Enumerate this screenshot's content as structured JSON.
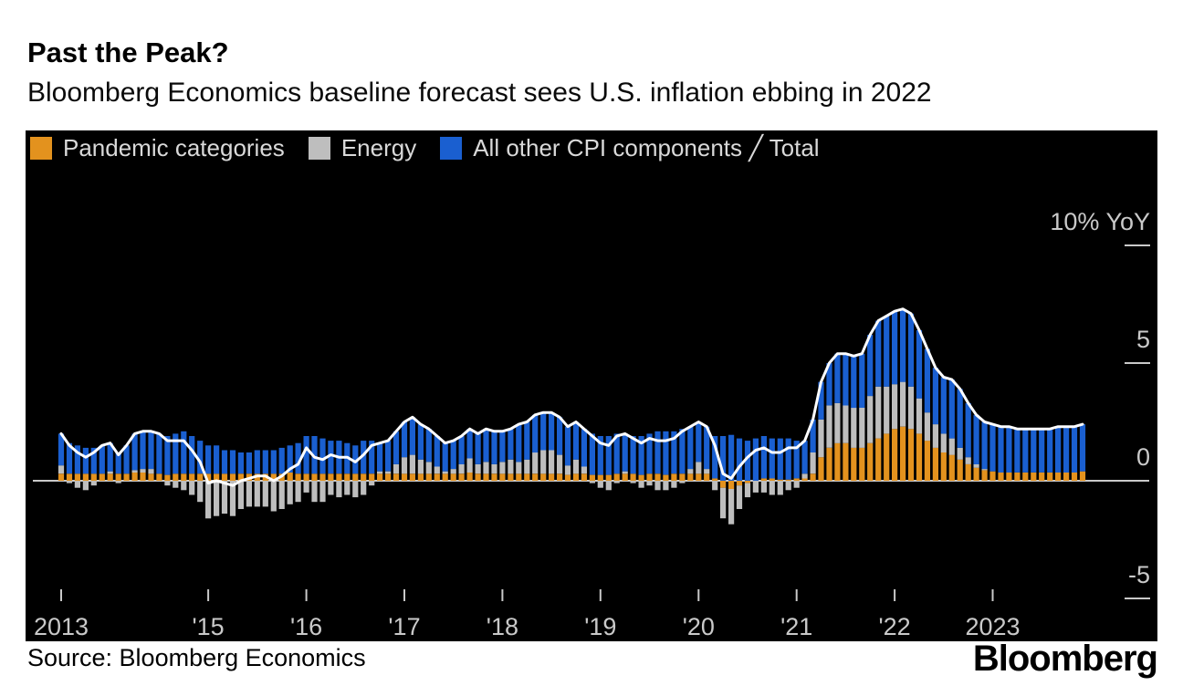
{
  "header": {
    "title": "Past the Peak?",
    "subtitle": "Bloomberg Economics baseline forecast sees U.S. inflation ebbing in 2022"
  },
  "legend": {
    "items": [
      {
        "label": "Pandemic categories",
        "color": "#E3921E"
      },
      {
        "label": "Energy",
        "color": "#BEBEBE"
      },
      {
        "label": "All other CPI components ╱ Total",
        "color": "#1A5FD0"
      }
    ]
  },
  "footer": {
    "source": "Source: Bloomberg Economics",
    "logo": "Bloomberg"
  },
  "chart_data": {
    "type": "bar",
    "subtype": "stacked-monthly-bars-with-total-line",
    "title": "Past the Peak?",
    "subtitle": "Bloomberg Economics baseline forecast sees U.S. inflation ebbing in 2022",
    "unit": "% YoY contribution to U.S. CPI",
    "x": {
      "frequency": "monthly",
      "start": "2013-07",
      "end": "2023-12",
      "ticks": [
        {
          "month_index": 0,
          "label": "2013"
        },
        {
          "month_index": 18,
          "label": "'15"
        },
        {
          "month_index": 30,
          "label": "'16"
        },
        {
          "month_index": 42,
          "label": "'17"
        },
        {
          "month_index": 54,
          "label": "'18"
        },
        {
          "month_index": 66,
          "label": "'19"
        },
        {
          "month_index": 78,
          "label": "'20"
        },
        {
          "month_index": 90,
          "label": "'21"
        },
        {
          "month_index": 102,
          "label": "'22"
        },
        {
          "month_index": 114,
          "label": "2023"
        }
      ]
    },
    "y": {
      "ticks": [
        {
          "value": 10,
          "label": "10% YoY",
          "dash": true
        },
        {
          "value": 5,
          "label": "5",
          "dash": true
        },
        {
          "value": 0,
          "label": "0",
          "dash": false
        },
        {
          "value": -5,
          "label": "-5",
          "dash": true
        }
      ],
      "range": [
        -5.3,
        12.9
      ],
      "grid": "zero-line-only"
    },
    "colors": {
      "background": "#000000",
      "axis_text": "#c9c9c9",
      "zero_line": "#c9c9c9",
      "total_line": "#ffffff"
    },
    "series": [
      {
        "name": "Pandemic categories",
        "type": "bar",
        "color": "#E3921E",
        "values": [
          0.3,
          0.3,
          0.3,
          0.3,
          0.3,
          0.3,
          0.3,
          0.3,
          0.3,
          0.35,
          0.35,
          0.3,
          0.3,
          0.25,
          0.3,
          0.3,
          0.3,
          0.3,
          0.3,
          0.3,
          0.3,
          0.3,
          0.3,
          0.3,
          0.3,
          0.3,
          0.3,
          0.3,
          0.35,
          0.3,
          0.3,
          0.3,
          0.3,
          0.3,
          0.3,
          0.3,
          0.3,
          0.3,
          0.3,
          0.3,
          0.3,
          0.3,
          0.3,
          0.3,
          0.3,
          0.3,
          0.3,
          0.3,
          0.3,
          0.3,
          0.35,
          0.3,
          0.3,
          0.3,
          0.3,
          0.3,
          0.3,
          0.3,
          0.3,
          0.3,
          0.3,
          0.3,
          0.25,
          0.3,
          0.3,
          0.25,
          0.25,
          0.25,
          0.3,
          0.3,
          0.3,
          0.25,
          0.3,
          0.3,
          0.25,
          0.3,
          0.3,
          0.3,
          0.3,
          0.3,
          0.1,
          -0.3,
          -0.35,
          -0.2,
          -0.1,
          0.0,
          0.1,
          0.1,
          0.05,
          0.05,
          0.1,
          0.1,
          0.3,
          1.0,
          1.4,
          1.6,
          1.6,
          1.4,
          1.4,
          1.6,
          1.8,
          2.0,
          2.2,
          2.3,
          2.2,
          2.0,
          1.7,
          1.4,
          1.2,
          1.1,
          0.9,
          0.7,
          0.55,
          0.45,
          0.4,
          0.35,
          0.35,
          0.35,
          0.35,
          0.35,
          0.35,
          0.35,
          0.35,
          0.35,
          0.35,
          0.4
        ]
      },
      {
        "name": "Energy",
        "type": "bar",
        "color": "#BEBEBE",
        "values": [
          0.35,
          -0.1,
          -0.3,
          -0.4,
          -0.2,
          0.0,
          0.1,
          -0.1,
          0.0,
          0.1,
          0.15,
          0.2,
          0.0,
          -0.2,
          -0.3,
          -0.4,
          -0.6,
          -0.9,
          -1.6,
          -1.5,
          -1.4,
          -1.5,
          -1.2,
          -1.1,
          -1.1,
          -1.1,
          -1.3,
          -1.2,
          -1.0,
          -0.9,
          -0.5,
          -0.9,
          -0.9,
          -0.6,
          -0.7,
          -0.6,
          -0.7,
          -0.6,
          -0.2,
          0.1,
          0.1,
          0.4,
          0.7,
          0.8,
          0.6,
          0.5,
          0.3,
          0.1,
          0.2,
          0.4,
          0.6,
          0.4,
          0.5,
          0.4,
          0.5,
          0.6,
          0.5,
          0.6,
          0.9,
          1.0,
          1.0,
          0.8,
          0.4,
          0.6,
          0.3,
          -0.1,
          -0.3,
          -0.4,
          -0.1,
          0.1,
          -0.1,
          -0.3,
          -0.2,
          -0.4,
          -0.4,
          -0.3,
          -0.1,
          0.2,
          0.5,
          0.2,
          -0.4,
          -1.3,
          -1.5,
          -1.0,
          -0.6,
          -0.5,
          -0.5,
          -0.6,
          -0.6,
          -0.4,
          -0.3,
          0.2,
          0.9,
          1.6,
          1.8,
          1.7,
          1.6,
          1.7,
          1.7,
          2.0,
          2.2,
          2.0,
          1.9,
          1.9,
          1.8,
          1.5,
          1.2,
          1.0,
          0.8,
          0.7,
          0.5,
          0.3,
          0.15,
          0.05,
          0.0,
          0.0,
          0.0,
          0.0,
          0.0,
          0.0,
          0.0,
          0.0,
          0.0,
          0.0,
          0.0,
          0.0
        ]
      },
      {
        "name": "All other CPI components",
        "type": "bar",
        "color": "#1A5FD0",
        "values": [
          1.35,
          1.3,
          1.2,
          1.1,
          1.1,
          1.2,
          1.2,
          0.9,
          1.2,
          1.55,
          1.6,
          1.6,
          1.7,
          1.65,
          1.7,
          1.8,
          1.6,
          1.4,
          1.2,
          1.2,
          1.0,
          1.0,
          0.9,
          0.9,
          1.0,
          1.0,
          1.0,
          1.1,
          1.15,
          1.3,
          1.6,
          1.6,
          1.5,
          1.4,
          1.4,
          1.3,
          1.2,
          1.4,
          1.4,
          1.2,
          1.3,
          1.4,
          1.5,
          1.6,
          1.5,
          1.4,
          1.3,
          1.2,
          1.2,
          1.2,
          1.25,
          1.3,
          1.4,
          1.4,
          1.3,
          1.3,
          1.6,
          1.6,
          1.6,
          1.6,
          1.6,
          1.6,
          1.65,
          1.6,
          1.6,
          1.75,
          1.65,
          1.65,
          1.7,
          1.6,
          1.6,
          1.65,
          1.7,
          1.8,
          1.85,
          1.8,
          1.9,
          1.8,
          1.7,
          1.8,
          1.8,
          1.9,
          1.95,
          1.8,
          1.7,
          1.8,
          1.8,
          1.7,
          1.75,
          1.75,
          1.6,
          1.4,
          1.4,
          1.6,
          1.8,
          2.1,
          2.2,
          2.2,
          2.3,
          2.6,
          2.8,
          3.0,
          3.1,
          3.1,
          3.1,
          2.9,
          2.7,
          2.4,
          2.4,
          2.5,
          2.5,
          2.3,
          2.1,
          2.0,
          2.0,
          1.95,
          1.95,
          1.85,
          1.85,
          1.85,
          1.85,
          1.85,
          1.95,
          1.95,
          1.95,
          2.0
        ]
      },
      {
        "name": "Total",
        "type": "line",
        "color": "#FFFFFF",
        "values": [
          2.0,
          1.5,
          1.2,
          1.0,
          1.2,
          1.5,
          1.6,
          1.1,
          1.5,
          2.0,
          2.1,
          2.1,
          2.0,
          1.7,
          1.7,
          1.7,
          1.3,
          0.8,
          -0.1,
          0.0,
          -0.1,
          -0.2,
          0.0,
          0.1,
          0.2,
          0.2,
          0.0,
          0.2,
          0.5,
          0.7,
          1.4,
          1.0,
          0.9,
          1.1,
          1.0,
          1.0,
          0.8,
          1.1,
          1.5,
          1.6,
          1.7,
          2.1,
          2.5,
          2.7,
          2.4,
          2.2,
          1.9,
          1.6,
          1.7,
          1.9,
          2.2,
          2.0,
          2.2,
          2.1,
          2.1,
          2.2,
          2.4,
          2.5,
          2.8,
          2.9,
          2.9,
          2.7,
          2.3,
          2.5,
          2.2,
          1.9,
          1.6,
          1.5,
          1.9,
          2.0,
          1.8,
          1.6,
          1.8,
          1.7,
          1.7,
          1.8,
          2.1,
          2.3,
          2.5,
          2.3,
          1.5,
          0.3,
          0.1,
          0.6,
          1.0,
          1.3,
          1.4,
          1.2,
          1.2,
          1.4,
          1.4,
          1.7,
          2.6,
          4.2,
          5.0,
          5.4,
          5.4,
          5.3,
          5.4,
          6.2,
          6.8,
          7.0,
          7.2,
          7.3,
          7.1,
          6.4,
          5.6,
          4.8,
          4.4,
          4.3,
          3.9,
          3.3,
          2.8,
          2.5,
          2.4,
          2.3,
          2.3,
          2.2,
          2.2,
          2.2,
          2.2,
          2.2,
          2.3,
          2.3,
          2.3,
          2.4
        ]
      }
    ]
  }
}
